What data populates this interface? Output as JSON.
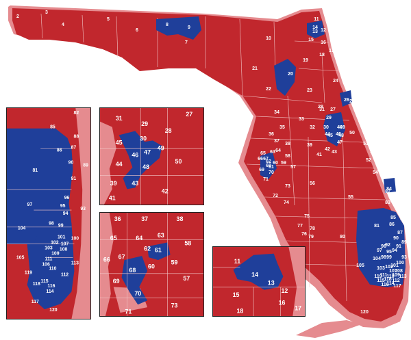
{
  "colors": {
    "republican": "#c1272d",
    "democrat": "#1f3f9a",
    "coastal_halo": "#e58b8f",
    "border": "#222222",
    "district_line": "#f2c8c9",
    "label": "#ffffff"
  },
  "main_map": {
    "labels": [
      "2",
      "3",
      "4",
      "5",
      "6",
      "7",
      "8",
      "9",
      "10",
      "11",
      "12",
      "13",
      "14",
      "15",
      "16",
      "17",
      "18",
      "19",
      "20",
      "21",
      "22",
      "23",
      "24",
      "25",
      "26",
      "27",
      "28",
      "29",
      "30",
      "31",
      "32",
      "33",
      "34",
      "35",
      "36",
      "37",
      "38",
      "39",
      "40",
      "41",
      "42",
      "43",
      "44",
      "45",
      "46",
      "47",
      "48",
      "49",
      "50",
      "51",
      "52",
      "53",
      "54",
      "55",
      "56",
      "57",
      "58",
      "59",
      "60",
      "61",
      "62",
      "63",
      "64",
      "65",
      "66",
      "67",
      "68",
      "69",
      "70",
      "71",
      "72",
      "73",
      "74",
      "75",
      "76",
      "77",
      "78",
      "79",
      "80",
      "81",
      "82",
      "83",
      "84",
      "85",
      "86",
      "87",
      "88",
      "89",
      "90",
      "91",
      "92",
      "93",
      "94",
      "95",
      "96",
      "97",
      "98",
      "99",
      "100",
      "101",
      "102",
      "103",
      "104",
      "105",
      "106",
      "107",
      "108",
      "109",
      "110",
      "111",
      "112",
      "113",
      "114",
      "115",
      "116",
      "117",
      "118",
      "119",
      "120"
    ]
  },
  "insets": {
    "south_florida": {
      "title": "",
      "labels": [
        "82",
        "85",
        "88",
        "86",
        "87",
        "89",
        "81",
        "90",
        "91",
        "96",
        "97",
        "95",
        "93",
        "94",
        "98",
        "99",
        "104",
        "100",
        "101",
        "102",
        "103",
        "107",
        "105",
        "108",
        "113",
        "106",
        "111",
        "109",
        "110",
        "119",
        "115",
        "118",
        "112",
        "114",
        "117",
        "116",
        "120"
      ],
      "democrat": [
        "88",
        "86",
        "87",
        "90",
        "91",
        "81",
        "96",
        "97",
        "95",
        "94",
        "98",
        "99",
        "104",
        "100",
        "101",
        "102",
        "107",
        "108",
        "113",
        "109",
        "112",
        "114",
        "117",
        "118",
        "103"
      ]
    },
    "tampa": {
      "labels": [
        "31",
        "27",
        "29",
        "28",
        "30",
        "45",
        "49",
        "46",
        "47",
        "44",
        "48",
        "50",
        "43",
        "39",
        "42",
        "41"
      ],
      "democrat": [
        "45",
        "49",
        "46",
        "48",
        "43"
      ]
    },
    "tampa_bay": {
      "labels": [
        "36",
        "37",
        "38",
        "65",
        "64",
        "63",
        "58",
        "67",
        "62",
        "61",
        "66",
        "68",
        "60",
        "59",
        "57",
        "69",
        "70",
        "73",
        "71"
      ],
      "democrat": [
        "62",
        "61",
        "68",
        "70"
      ]
    },
    "jacksonville": {
      "labels": [
        "11",
        "14",
        "13",
        "12",
        "15",
        "16",
        "17",
        "18"
      ],
      "democrat": [
        "14",
        "13"
      ]
    }
  }
}
